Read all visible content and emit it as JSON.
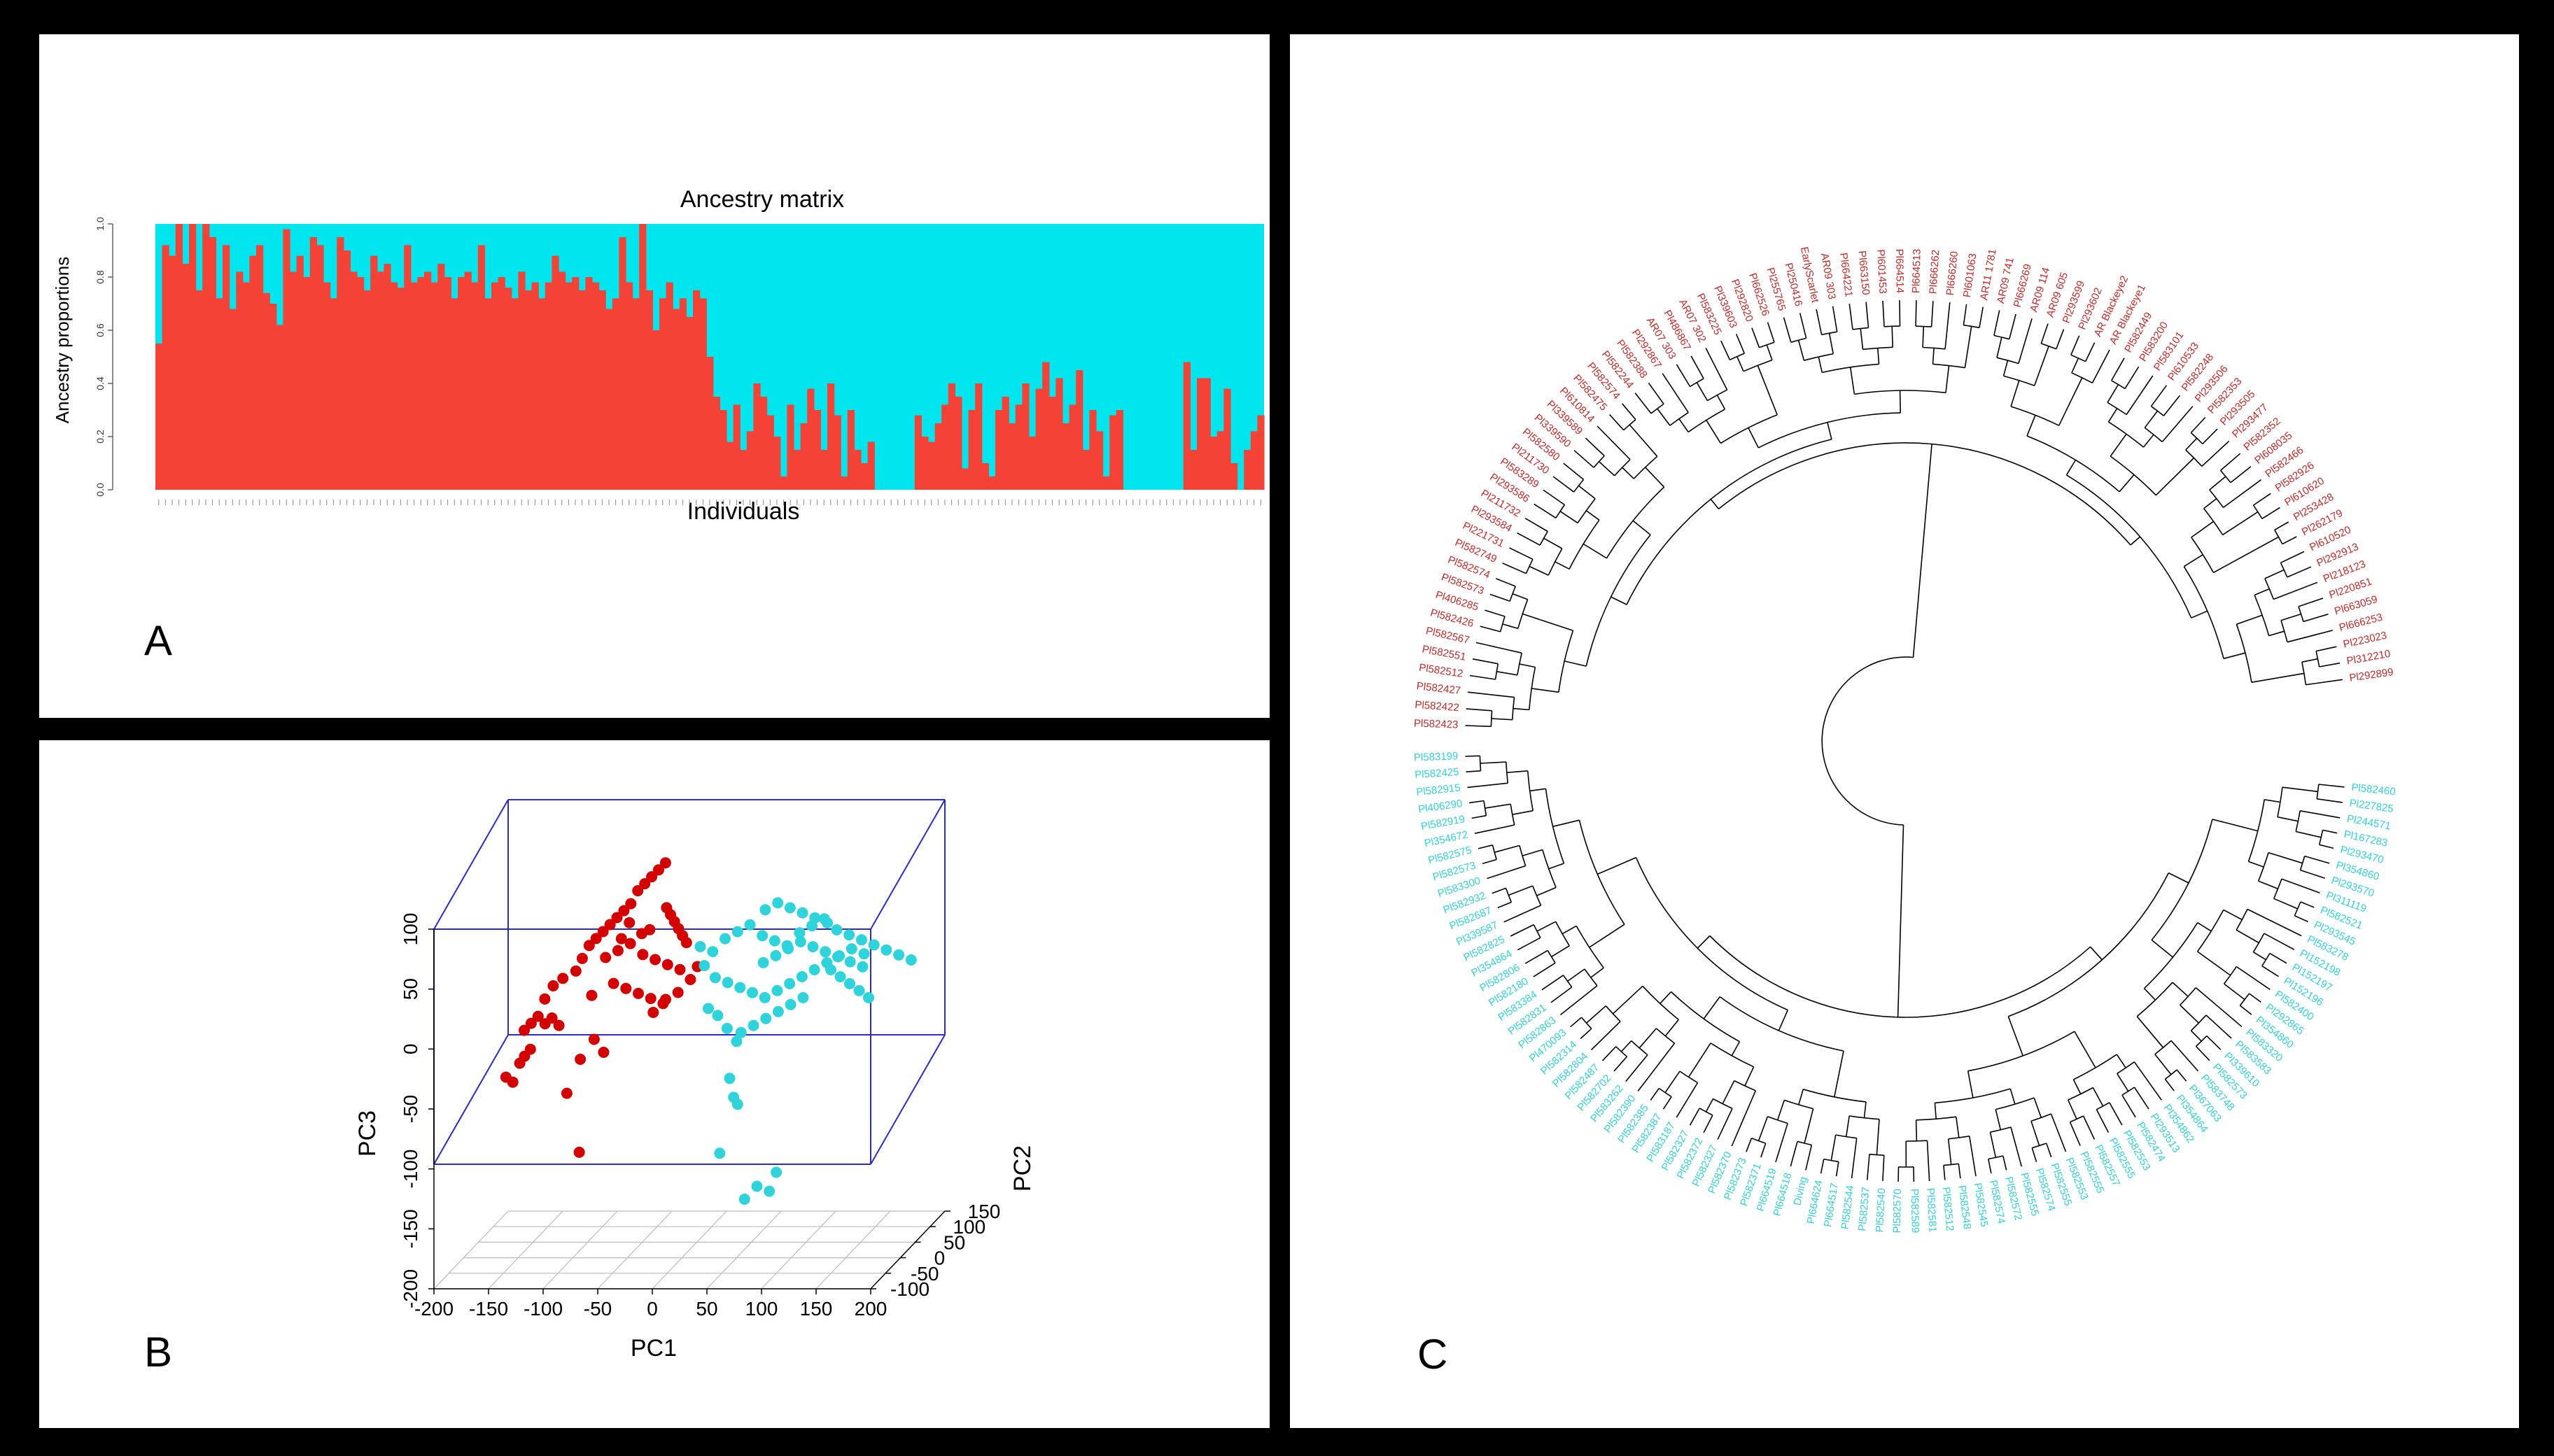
{
  "panels": {
    "a_label": "A",
    "b_label": "B",
    "c_label": "C"
  },
  "colors": {
    "red": "#F44336",
    "cyan": "#00E5EE",
    "dark_red": "#D40000",
    "box_blue": "#2B2BC8",
    "tree_red": "#C62828",
    "tree_cyan": "#2FD3DB"
  },
  "chart_data": [
    {
      "type": "bar",
      "stacked": true,
      "title": "Ancestry matrix",
      "xlabel": "Individuals",
      "ylabel": "Ancestry proportions",
      "ylim": [
        0,
        1
      ],
      "yticks": [
        "0.0",
        "0.2",
        "0.4",
        "0.6",
        "0.8",
        "1.0"
      ],
      "series": [
        {
          "color": "#F44336",
          "values": [
            0.55,
            0.92,
            0.88,
            1.0,
            0.85,
            1.0,
            0.75,
            1.0,
            0.95,
            0.72,
            0.92,
            0.68,
            0.82,
            0.78,
            0.88,
            0.92,
            0.74,
            0.7,
            0.62,
            0.98,
            0.82,
            0.88,
            0.8,
            0.95,
            0.92,
            0.78,
            0.72,
            0.95,
            0.9,
            0.82,
            0.8,
            0.75,
            0.88,
            0.82,
            0.85,
            0.78,
            0.76,
            0.92,
            0.78,
            0.8,
            0.82,
            0.78,
            0.85,
            0.8,
            0.72,
            0.8,
            0.82,
            0.78,
            0.92,
            0.72,
            0.78,
            0.8,
            0.76,
            0.72,
            0.82,
            0.75,
            0.78,
            0.72,
            0.78,
            0.88,
            0.82,
            0.78,
            0.8,
            0.75,
            0.8,
            0.78,
            0.75,
            0.68,
            0.72,
            0.95,
            0.78,
            0.72,
            1.0,
            0.75,
            0.6,
            0.72,
            0.78,
            0.68,
            0.72,
            0.65,
            0.75,
            0.72,
            0.5,
            0.35,
            0.3,
            0.18,
            0.32,
            0.15,
            0.22,
            0.4,
            0.35,
            0.28,
            0.2,
            0.05,
            0.32,
            0.15,
            0.25,
            0.38,
            0.3,
            0.15,
            0.4,
            0.28,
            0.05,
            0.3,
            0.15,
            0.1,
            0.18,
            0.0,
            0.0,
            0.0,
            0.0,
            0.0,
            0.0,
            0.28,
            0.2,
            0.18,
            0.25,
            0.32,
            0.4,
            0.35,
            0.08,
            0.3,
            0.4,
            0.1,
            0.05,
            0.3,
            0.35,
            0.25,
            0.32,
            0.4,
            0.2,
            0.38,
            0.48,
            0.35,
            0.42,
            0.25,
            0.32,
            0.45,
            0.15,
            0.3,
            0.22,
            0.05,
            0.28,
            0.3,
            0.0,
            0.0,
            0.0,
            0.0,
            0.0,
            0.0,
            0.0,
            0.0,
            0.0,
            0.48,
            0.15,
            0.42,
            0.42,
            0.2,
            0.22,
            0.38,
            0.1,
            0.0,
            0.15,
            0.22,
            0.28
          ]
        },
        {
          "color": "#00E5EE",
          "values": "remainder to 1.0"
        }
      ]
    },
    {
      "type": "scatter",
      "dimensions": 3,
      "xlabel": "PC1",
      "ylabel": "PC2",
      "zlabel": "PC3",
      "xticks": [
        "-200",
        "-150",
        "-100",
        "-50",
        "0",
        "50",
        "100",
        "150",
        "200"
      ],
      "yticks": [
        "-100",
        "-50",
        "0",
        "50",
        "100",
        "150"
      ],
      "zticks": [
        "-200",
        "-150",
        "-100",
        "-50",
        "0",
        "50",
        "100"
      ],
      "series": [
        {
          "color": "#D40000",
          "points": [
            [
              -145,
              -60,
              -30
            ],
            [
              -140,
              -55,
              -35
            ],
            [
              -135,
              -50,
              -20
            ],
            [
              -132,
              -45,
              -15
            ],
            [
              -128,
              -40,
              -10
            ],
            [
              -135,
              -35,
              5
            ],
            [
              -130,
              -30,
              10
            ],
            [
              -125,
              -25,
              15
            ],
            [
              -120,
              -20,
              8
            ],
            [
              -115,
              -15,
              12
            ],
            [
              -110,
              -10,
              5
            ],
            [
              -118,
              -28,
              30
            ],
            [
              -112,
              -22,
              40
            ],
            [
              -105,
              -15,
              45
            ],
            [
              -95,
              -8,
              50
            ],
            [
              -90,
              -5,
              60
            ],
            [
              -85,
              0,
              70
            ],
            [
              -80,
              5,
              75
            ],
            [
              -75,
              10,
              80
            ],
            [
              -70,
              15,
              85
            ],
            [
              -65,
              20,
              90
            ],
            [
              -60,
              25,
              95
            ],
            [
              -55,
              30,
              100
            ],
            [
              -50,
              35,
              110
            ],
            [
              -45,
              40,
              115
            ],
            [
              -40,
              45,
              120
            ],
            [
              -35,
              50,
              125
            ],
            [
              -30,
              55,
              130
            ],
            [
              -25,
              40,
              95
            ],
            [
              -20,
              35,
              90
            ],
            [
              -15,
              30,
              85
            ],
            [
              -10,
              25,
              80
            ],
            [
              -5,
              20,
              75
            ],
            [
              0,
              15,
              70
            ],
            [
              -70,
              0,
              60
            ],
            [
              -60,
              5,
              65
            ],
            [
              -50,
              10,
              70
            ],
            [
              -40,
              15,
              60
            ],
            [
              -30,
              20,
              55
            ],
            [
              -20,
              25,
              50
            ],
            [
              -10,
              30,
              45
            ],
            [
              -60,
              -10,
              40
            ],
            [
              -50,
              -5,
              35
            ],
            [
              -40,
              0,
              30
            ],
            [
              -30,
              5,
              25
            ],
            [
              -20,
              10,
              20
            ],
            [
              -80,
              -10,
              30
            ],
            [
              -75,
              -20,
              -5
            ],
            [
              -85,
              -30,
              -20
            ],
            [
              -65,
              -25,
              -15
            ],
            [
              -25,
              -5,
              15
            ],
            [
              -15,
              0,
              25
            ],
            [
              -5,
              5,
              30
            ],
            [
              5,
              10,
              40
            ],
            [
              10,
              15,
              50
            ],
            [
              -35,
              20,
              80
            ],
            [
              -55,
              25,
              85
            ],
            [
              -45,
              30,
              75
            ],
            [
              -65,
              35,
              70
            ],
            [
              -90,
              -15,
              -100
            ],
            [
              -100,
              -20,
              -50
            ]
          ]
        },
        {
          "color": "#2FD3DB",
          "points": [
            [
              20,
              30,
              60
            ],
            [
              30,
              35,
              70
            ],
            [
              40,
              40,
              75
            ],
            [
              50,
              45,
              80
            ],
            [
              60,
              50,
              70
            ],
            [
              70,
              55,
              65
            ],
            [
              80,
              60,
              60
            ],
            [
              90,
              65,
              70
            ],
            [
              100,
              70,
              75
            ],
            [
              110,
              75,
              80
            ],
            [
              120,
              80,
              70
            ],
            [
              130,
              85,
              65
            ],
            [
              140,
              90,
              60
            ],
            [
              150,
              95,
              55
            ],
            [
              160,
              100,
              50
            ],
            [
              170,
              105,
              45
            ],
            [
              180,
              110,
              40
            ],
            [
              25,
              20,
              40
            ],
            [
              35,
              25,
              35
            ],
            [
              45,
              30,
              30
            ],
            [
              55,
              35,
              25
            ],
            [
              65,
              40,
              20
            ],
            [
              75,
              45,
              25
            ],
            [
              85,
              50,
              30
            ],
            [
              95,
              55,
              35
            ],
            [
              105,
              60,
              40
            ],
            [
              115,
              65,
              45
            ],
            [
              125,
              70,
              50
            ],
            [
              135,
              75,
              55
            ],
            [
              145,
              80,
              50
            ],
            [
              30,
              10,
              10
            ],
            [
              40,
              5,
              0
            ],
            [
              50,
              0,
              -10
            ],
            [
              45,
              -5,
              -40
            ],
            [
              50,
              -10,
              -55
            ],
            [
              40,
              -20,
              -100
            ],
            [
              55,
              -15,
              -60
            ],
            [
              60,
              -10,
              -140
            ],
            [
              70,
              -5,
              -130
            ],
            [
              80,
              0,
              -135
            ],
            [
              85,
              5,
              -120
            ],
            [
              20,
              15,
              15
            ],
            [
              15,
              20,
              50
            ],
            [
              10,
              25,
              65
            ],
            [
              60,
              60,
              90
            ],
            [
              70,
              65,
              95
            ],
            [
              80,
              70,
              90
            ],
            [
              90,
              75,
              85
            ],
            [
              100,
              80,
              80
            ],
            [
              110,
              85,
              75
            ],
            [
              120,
              60,
              40
            ],
            [
              130,
              55,
              35
            ],
            [
              140,
              50,
              30
            ],
            [
              150,
              45,
              25
            ],
            [
              160,
              40,
              20
            ],
            [
              100,
              40,
              20
            ],
            [
              90,
              35,
              15
            ],
            [
              80,
              30,
              10
            ],
            [
              70,
              25,
              5
            ],
            [
              60,
              20,
              0
            ],
            [
              50,
              15,
              -5
            ],
            [
              65,
              35,
              50
            ],
            [
              75,
              40,
              55
            ],
            [
              85,
              45,
              60
            ],
            [
              95,
              50,
              65
            ],
            [
              105,
              55,
              60
            ],
            [
              115,
              60,
              55
            ],
            [
              125,
              65,
              50
            ],
            [
              135,
              70,
              45
            ],
            [
              145,
              75,
              40
            ]
          ]
        }
      ]
    },
    {
      "type": "dendrogram",
      "layout": "circular",
      "red_labels": [
        "Pl292899",
        "Pl312210",
        "Pl223023",
        "Pl666253",
        "Pl663059",
        "Pl220851",
        "Pl218123",
        "Pl292913",
        "Pl610520",
        "Pl262179",
        "Pl253428",
        "Pl610620",
        "Pl582926",
        "Pl582466",
        "Pl608035",
        "Pl582352",
        "Pl293477",
        "Pl293505",
        "Pl582353",
        "Pl293506",
        "Pl582248",
        "Pl610533",
        "Pl583101",
        "Pl583200",
        "Pl582449",
        "AR Blackeye1",
        "AR Blackeye2",
        "Pl293602",
        "Pl293599",
        "AR09 605",
        "AR09 114",
        "Pl666269",
        "AR09 741",
        "AR11 1781",
        "Pl601063",
        "Pl666260",
        "Pl666262",
        "Pl664513",
        "Pl664514",
        "Pl601453",
        "Pl663150",
        "Pl664221",
        "AR09 303",
        "EarlyScarlet",
        "Pl250416",
        "Pl255765",
        "Pl662526",
        "Pl292820",
        "Pl339603",
        "Pl583225",
        "AR07 302",
        "Pl486867",
        "AR07 303",
        "Pl292867",
        "Pl582388",
        "Pl582244",
        "Pl582574",
        "Pl582475",
        "Pl610814",
        "Pl339589",
        "Pl339590",
        "Pl582580",
        "Pl211730",
        "Pl583289",
        "Pl293586",
        "Pl211732",
        "Pl293584",
        "Pl221731",
        "Pl582749",
        "Pl582574",
        "Pl582573",
        "Pl406285",
        "Pl582426",
        "Pl582567",
        "Pl582551",
        "Pl582512",
        "Pl582427",
        "Pl582422",
        "Pl582423"
      ],
      "cyan_labels": [
        "Pl582460",
        "Pl227825",
        "Pl244571",
        "Pl167283",
        "Pl293470",
        "Pl354860",
        "Pl293570",
        "Pl311119",
        "Pl582521",
        "Pl293545",
        "Pl583278",
        "Pl152198",
        "Pl152197",
        "Pl152196",
        "Pl582400",
        "Pl292865",
        "Pl354860",
        "Pl583320",
        "Pl583583",
        "Pl339610",
        "Pl582573",
        "Pl583748",
        "Pl367063",
        "Pl354864",
        "Pl354862",
        "Pl293513",
        "Pl582474",
        "Pl582553",
        "Pl582555",
        "Pl582557",
        "Pl582555",
        "Pl582553",
        "Pl582555",
        "Pl582574",
        "Pl582555",
        "Pl582572",
        "Pl582574",
        "Pl582545",
        "Pl582548",
        "Pl582512",
        "Pl582581",
        "Pl582589",
        "Pl582570",
        "Pl582540",
        "Pl582537",
        "Pl582544",
        "Pl664517",
        "Pl664624",
        "Diving",
        "Pl664518",
        "Pl664519",
        "Pl582371",
        "Pl582373",
        "Pl582370",
        "Pl582327",
        "Pl582372",
        "Pl582327",
        "Pl583187",
        "Pl582387",
        "Pl582385",
        "Pl582390",
        "Pl583262",
        "Pl582702",
        "Pl582487",
        "Pl582804",
        "Pl582314",
        "Pl470093",
        "Pl582863",
        "Pl582831",
        "Pl583384",
        "Pl582180",
        "Pl582806",
        "Pl354864",
        "Pl582825",
        "Pl339587",
        "Pl582687",
        "Pl582932",
        "Pl583300",
        "Pl582573",
        "Pl582575",
        "Pl354672",
        "Pl582919",
        "Pl406290",
        "Pl582915",
        "Pl582425",
        "Pl583199"
      ]
    }
  ]
}
